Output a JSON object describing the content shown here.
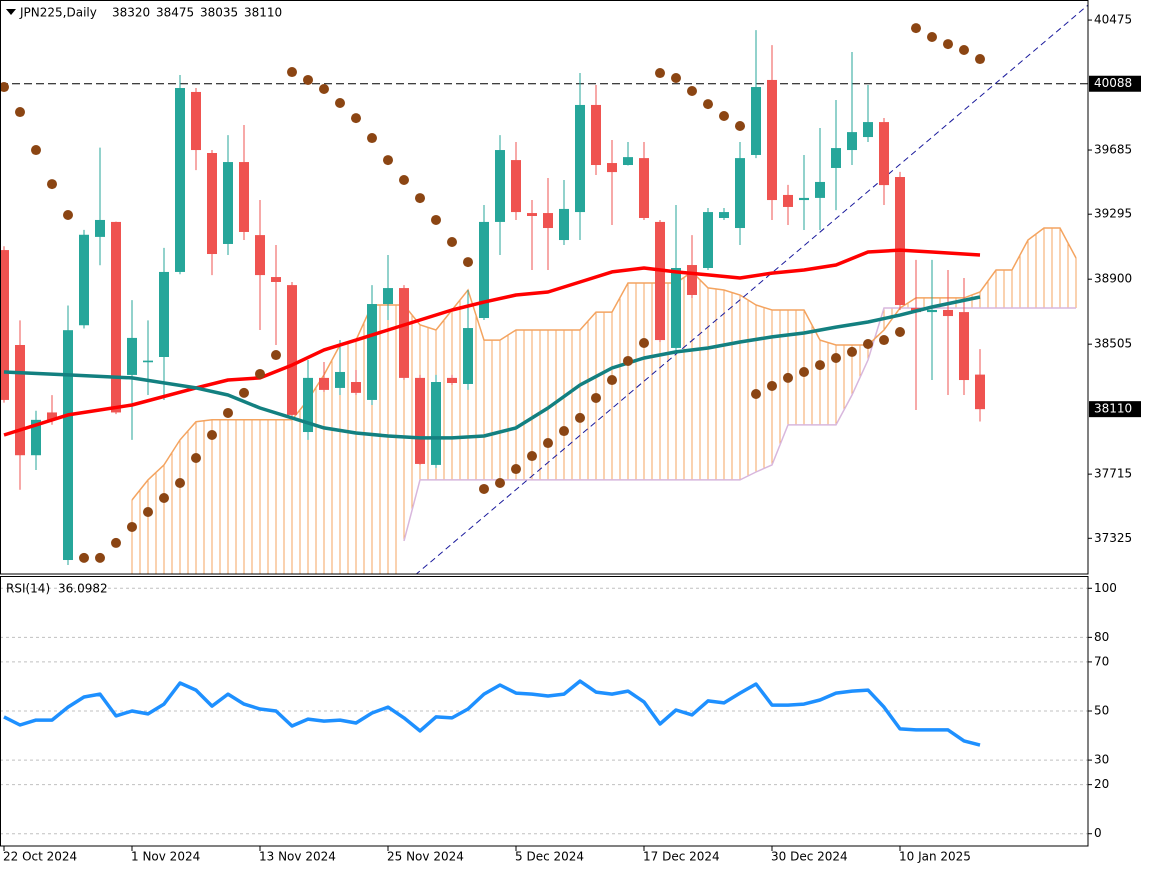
{
  "chart_data": [
    {
      "type": "candlestick",
      "title": "JPN225,Daily",
      "categories": [
        "22 Oct 2024",
        null,
        null,
        null,
        null,
        null,
        null,
        null,
        "1 Nov 2024",
        null,
        null,
        null,
        null,
        null,
        null,
        null,
        "13 Nov 2024",
        null,
        null,
        null,
        null,
        null,
        null,
        null,
        "25 Nov 2024",
        null,
        null,
        null,
        null,
        null,
        null,
        null,
        "5 Dec 2024",
        null,
        null,
        null,
        null,
        null,
        null,
        null,
        "17 Dec 2024",
        null,
        null,
        null,
        null,
        null,
        null,
        null,
        "30 Dec 2024",
        null,
        null,
        null,
        null,
        null,
        null,
        null,
        "10 Jan 2025",
        null,
        null,
        null,
        null,
        null
      ],
      "open": [
        39077,
        38500,
        37830,
        38090,
        37193,
        38620,
        39157,
        39248,
        38318,
        38395,
        38427,
        38944,
        40038,
        39667,
        39114,
        39612,
        39168,
        38913,
        38864,
        37971,
        38300,
        38239,
        38275,
        38166,
        38749,
        38846,
        38300,
        37771,
        38300,
        38263,
        38664,
        39248,
        39624,
        39302,
        39302,
        39138,
        39308,
        39959,
        39606,
        39594,
        39636,
        39248,
        38482,
        38986,
        38968,
        39272,
        39211,
        39655,
        40111,
        39412,
        39381,
        39394,
        39576,
        39685,
        39764,
        39855,
        39521,
        38725,
        38700,
        38713,
        38700,
        38320
      ],
      "high": [
        39100,
        38650,
        38100,
        38195,
        38740,
        39200,
        39700,
        39250,
        38773,
        38650,
        39090,
        40141,
        40062,
        39685,
        39776,
        39837,
        39381,
        39108,
        38883,
        38409,
        38397,
        38530,
        38348,
        38864,
        39047,
        38864,
        38318,
        38318,
        38318,
        38834,
        39351,
        39776,
        39734,
        39381,
        39515,
        39503,
        40153,
        40080,
        39746,
        39734,
        39734,
        39260,
        39351,
        39168,
        39333,
        39333,
        39734,
        40414,
        40323,
        39473,
        39655,
        39819,
        39989,
        40281,
        40080,
        39880,
        39552,
        39017,
        39017,
        38956,
        38907,
        38475
      ],
      "low": [
        38150,
        37620,
        37740,
        38015,
        37163,
        38600,
        38985,
        38080,
        37923,
        38196,
        38166,
        38930,
        39563,
        38925,
        39047,
        39138,
        38591,
        38500,
        38050,
        37923,
        38215,
        38196,
        38196,
        38135,
        38652,
        38288,
        37771,
        37753,
        38257,
        38227,
        38652,
        39047,
        39260,
        38956,
        38956,
        39108,
        39138,
        39533,
        39229,
        39591,
        39260,
        38518,
        38458,
        38786,
        38956,
        39260,
        39108,
        39636,
        39260,
        39229,
        39199,
        39199,
        39320,
        39594,
        39734,
        39351,
        38713,
        38105,
        38287,
        38196,
        38196,
        38035
      ],
      "close": [
        38166,
        37830,
        38045,
        38045,
        38590,
        39170,
        39260,
        38090,
        38543,
        38405,
        38944,
        40062,
        39685,
        39053,
        39612,
        39187,
        38925,
        38883,
        38075,
        38300,
        38227,
        38336,
        38209,
        38749,
        38846,
        38300,
        37777,
        38275,
        38269,
        38603,
        39248,
        39685,
        39308,
        39284,
        39211,
        39327,
        39959,
        39594,
        39551,
        39642,
        39272,
        38530,
        38968,
        38804,
        39308,
        39308,
        39636,
        40068,
        39381,
        39339,
        39394,
        39491,
        39697,
        39794,
        39855,
        39472,
        38743,
        38700,
        38713,
        38676,
        38287,
        38110
      ],
      "up_color": "#26a69a",
      "down_color": "#ef5350",
      "lines": [
        {
          "color": "#ff0000",
          "x": [
            0,
            4,
            8,
            12,
            14,
            16,
            18,
            20,
            22,
            24,
            26,
            28,
            30,
            32,
            34,
            36,
            38,
            40,
            42,
            44,
            46,
            48,
            50,
            52,
            54,
            56,
            58,
            61
          ],
          "values": [
            37953,
            38075,
            38135,
            38239,
            38287,
            38300,
            38378,
            38470,
            38530,
            38591,
            38652,
            38713,
            38761,
            38804,
            38822,
            38883,
            38944,
            38968,
            38944,
            38926,
            38907,
            38937,
            38956,
            38986,
            39065,
            39077,
            39065,
            39047
          ]
        },
        {
          "color": "#138080",
          "x": [
            0,
            4,
            8,
            12,
            14,
            16,
            18,
            20,
            22,
            24,
            26,
            28,
            30,
            32,
            34,
            36,
            38,
            40,
            42,
            44,
            46,
            48,
            50,
            52,
            54,
            56,
            58,
            61
          ],
          "values": [
            38336,
            38318,
            38300,
            38239,
            38196,
            38117,
            38057,
            37996,
            37965,
            37947,
            37935,
            37935,
            37947,
            37996,
            38117,
            38257,
            38360,
            38421,
            38458,
            38482,
            38518,
            38549,
            38573,
            38609,
            38640,
            38682,
            38731,
            38792
          ]
        }
      ],
      "sar": {
        "color": "#8b4513",
        "values": [
          40068,
          39916,
          39685,
          39478,
          39290,
          37206,
          37206,
          37297,
          37394,
          37485,
          37570,
          37661,
          37813,
          37953,
          38087,
          38209,
          38324,
          38439,
          40159,
          40111,
          40056,
          39971,
          39879,
          39758,
          39624,
          39503,
          39393,
          39260,
          39126,
          39004,
          37625,
          37661,
          37746,
          37825,
          37904,
          37977,
          38057,
          38178,
          38287,
          38403,
          38512,
          40153,
          40123,
          40044,
          39964,
          39892,
          39831,
          38202,
          38251,
          38300,
          38336,
          38378,
          38421,
          38458,
          38506,
          38530,
          38579,
          40426,
          40372,
          40329,
          40293,
          40238
        ]
      },
      "cloud": {
        "color_a": "#f4a460",
        "color_b": "#d8b7dd",
        "x": [
          8,
          9,
          10,
          11,
          12,
          13,
          14,
          15,
          16,
          17,
          18,
          19,
          20,
          21,
          22,
          23,
          24,
          25,
          26,
          27,
          28,
          29,
          30,
          31,
          32,
          33,
          34,
          35,
          36,
          37,
          38,
          39,
          40,
          41,
          42,
          43,
          44,
          45,
          46,
          47,
          48,
          49,
          50,
          51,
          52,
          53,
          54,
          55,
          56,
          57,
          58,
          59,
          60,
          61,
          62,
          63,
          64,
          65,
          66,
          67
        ],
        "span_a": [
          37558,
          37680,
          37771,
          37923,
          38034,
          38046,
          38046,
          38046,
          38046,
          38046,
          38046,
          38166,
          38318,
          38500,
          38530,
          38743,
          38743,
          38743,
          38622,
          38591,
          38713,
          38834,
          38530,
          38530,
          38591,
          38591,
          38591,
          38591,
          38591,
          38700,
          38700,
          38877,
          38877,
          38877,
          38877,
          38944,
          38847,
          38834,
          38804,
          38743,
          38713,
          38713,
          38713,
          38530,
          38500,
          38500,
          38500,
          38591,
          38725,
          38786,
          38786,
          38786,
          38786,
          38822,
          38956,
          38956,
          39138,
          39211,
          39211,
          39029
        ],
        "span_b": [
          null,
          null,
          null,
          null,
          null,
          null,
          null,
          null,
          null,
          null,
          null,
          null,
          null,
          null,
          null,
          null,
          null,
          37309,
          37680,
          37680,
          37680,
          37680,
          37680,
          37680,
          37680,
          37680,
          37680,
          37680,
          37680,
          37680,
          37680,
          37680,
          37680,
          37680,
          37680,
          37680,
          37680,
          37680,
          37680,
          37728,
          37771,
          38014,
          38014,
          38014,
          38014,
          38196,
          38409,
          38725,
          38725,
          38725,
          38725,
          38725,
          38725,
          38725,
          38725,
          38725,
          38725,
          38725,
          38725,
          38725
        ]
      },
      "trendline": {
        "color": "#1a1a9c",
        "x": [
          25.7,
          67.75
        ],
        "values": [
          37102,
          40566
        ]
      },
      "hline": 40088,
      "last_price": 38110,
      "xlim": [
        -0.25,
        67.75
      ],
      "ylim": [
        37108,
        40597
      ],
      "yticks": [
        40475,
        39685,
        39295,
        38900,
        38505,
        37715,
        37325
      ]
    },
    {
      "type": "line",
      "title": "RSI(14)",
      "color": "#1e90ff",
      "values": [
        47.6,
        44.3,
        46.3,
        46.3,
        51.6,
        55.7,
        56.9,
        48.0,
        50.0,
        48.8,
        52.8,
        61.4,
        58.5,
        52.0,
        56.9,
        52.8,
        50.8,
        50.0,
        43.9,
        46.7,
        45.9,
        46.3,
        45.1,
        49.2,
        51.6,
        47.2,
        41.9,
        47.6,
        47.2,
        50.8,
        56.9,
        60.6,
        57.3,
        56.9,
        56.1,
        56.9,
        62.2,
        57.7,
        56.9,
        58.1,
        53.7,
        44.7,
        50.4,
        48.4,
        54.1,
        53.3,
        57.3,
        61.0,
        52.4,
        52.4,
        52.8,
        54.5,
        57.3,
        58.1,
        58.5,
        51.6,
        42.7,
        42.3,
        42.3,
        42.3,
        37.8,
        36.0982
      ],
      "ylim": [
        -5,
        105
      ],
      "yticks": [
        0,
        20,
        30,
        50,
        70,
        80,
        100
      ],
      "grid": true
    }
  ]
}
